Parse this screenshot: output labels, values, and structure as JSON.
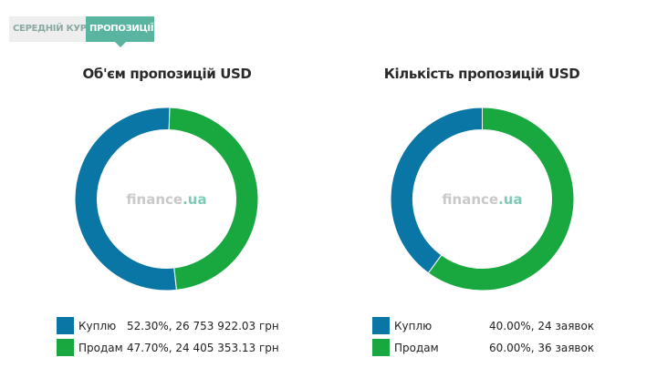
{
  "tabs": [
    {
      "label": "СЕРЕДНІЙ КУРС",
      "active": false
    },
    {
      "label": "ПРОПОЗИЦІЇ",
      "active": true
    }
  ],
  "watermark": {
    "main": "finance",
    "suffix": ".ua"
  },
  "colors": {
    "buy": "#0a76a6",
    "sell": "#18a83f"
  },
  "chart_data": [
    {
      "type": "pie",
      "title": "Об'єм пропозицій USD",
      "slices": [
        {
          "name": "Куплю",
          "percent": 52.3,
          "value_text": "52.30%, 26 753 922.03 грн"
        },
        {
          "name": "Продам",
          "percent": 47.7,
          "value_text": "47.70%, 24 405 353.13 грн"
        }
      ]
    },
    {
      "type": "pie",
      "title": "Кількість пропозицій USD",
      "slices": [
        {
          "name": "Куплю",
          "percent": 40.0,
          "value_text": "40.00%, 24 заявок"
        },
        {
          "name": "Продам",
          "percent": 60.0,
          "value_text": "60.00%, 36 заявок"
        }
      ]
    }
  ]
}
